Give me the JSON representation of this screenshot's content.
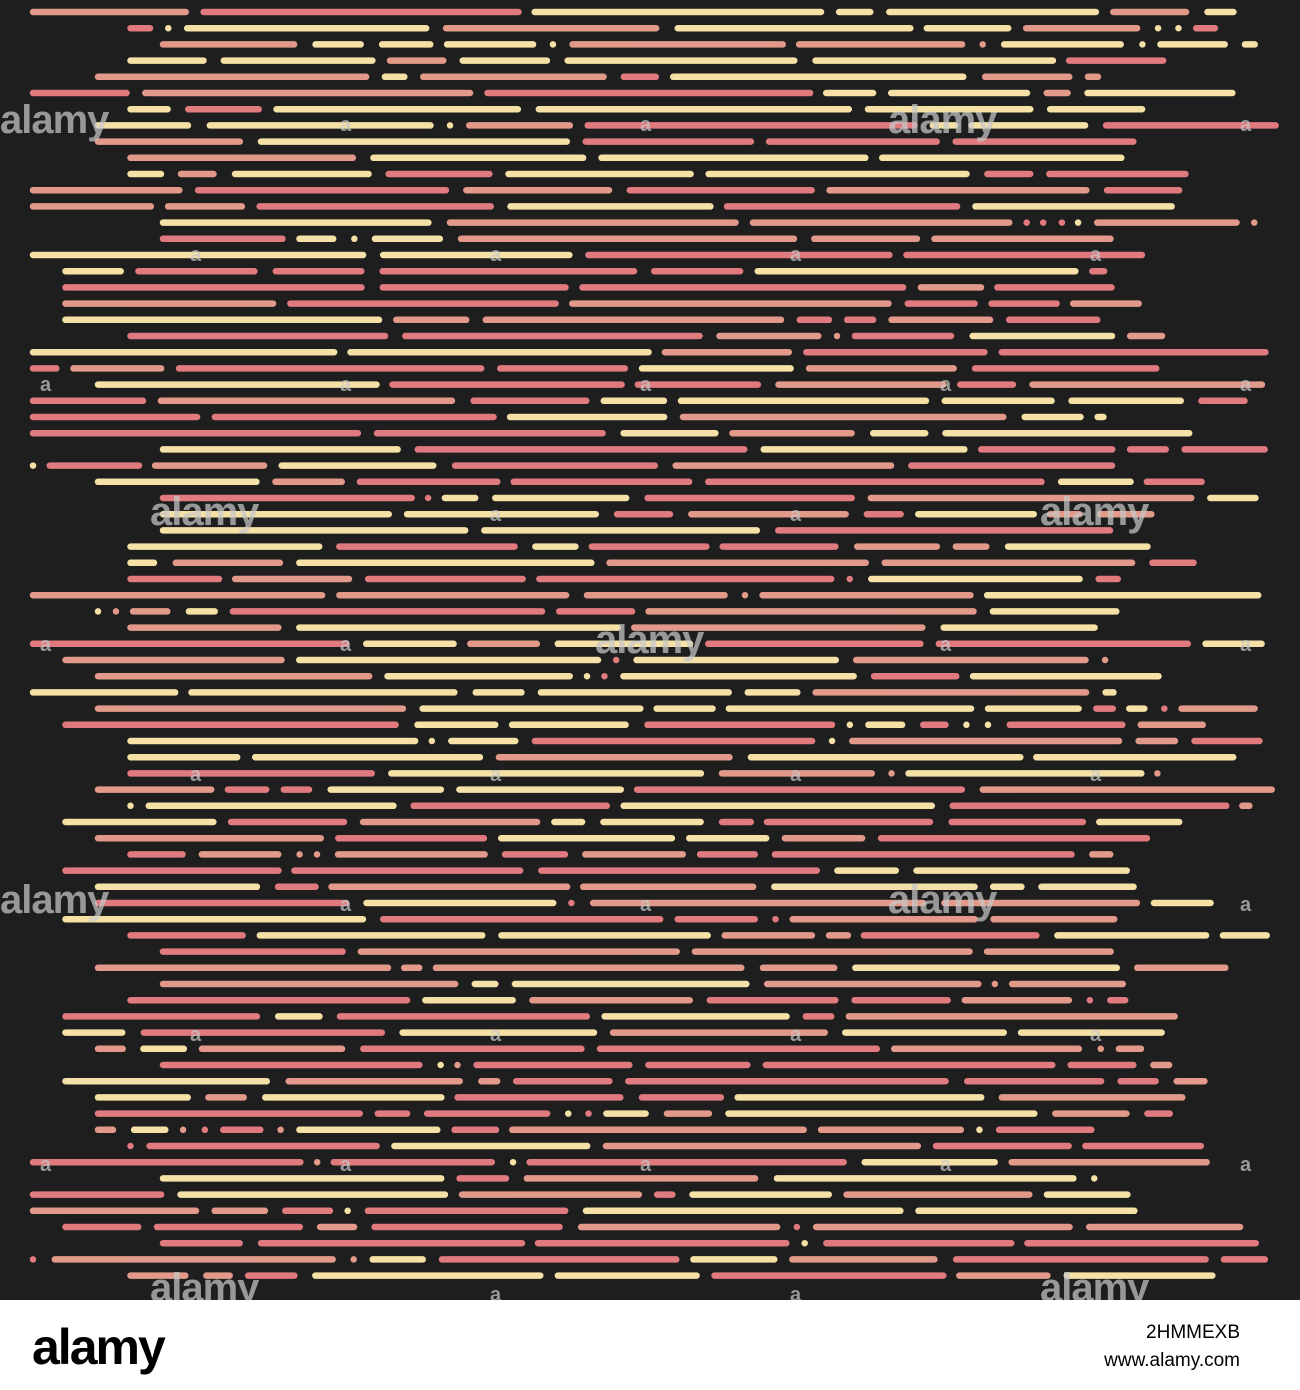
{
  "palette": {
    "background": "#1e1e1e",
    "pink": "#e07a7f",
    "salmon": "#e3998a",
    "cream": "#f5e0a5"
  },
  "watermark": {
    "text": "alamy",
    "badge": "a"
  },
  "footer": {
    "logo": "alamy",
    "image_id": "2HMMEXB",
    "url": "www.alamy.com"
  }
}
